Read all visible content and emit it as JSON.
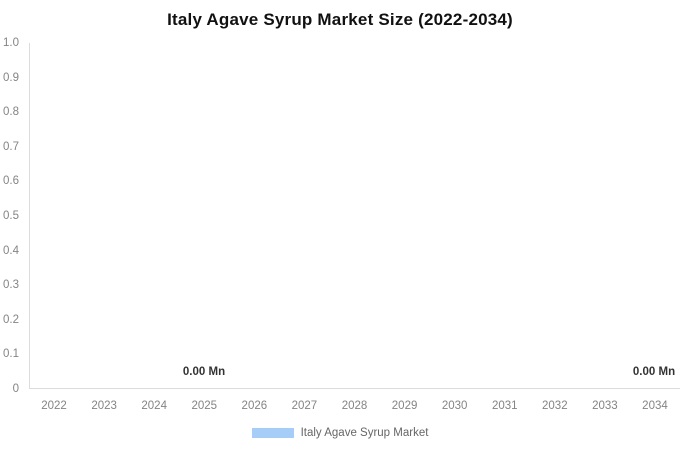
{
  "title": "Italy Agave Syrup Market Size (2022-2034)",
  "colors": {
    "series": "#a6cdf8",
    "title_text": "#111111",
    "axis_text": "#848484",
    "data_label_text": "#333333",
    "legend_text": "#666666",
    "axis_line": "#dcdcdc",
    "background": "#ffffff"
  },
  "chart_data": {
    "type": "bar",
    "title": "Italy Agave Syrup Market Size (2022-2034)",
    "categories": [
      "2022",
      "2023",
      "2024",
      "2025",
      "2026",
      "2027",
      "2028",
      "2029",
      "2030",
      "2031",
      "2032",
      "2033",
      "2034"
    ],
    "series": [
      {
        "name": "Italy Agave Syrup Market",
        "values": [
          0,
          0,
          0,
          0,
          0,
          0,
          0,
          0,
          0,
          0,
          0,
          0,
          0
        ],
        "unit": "Mn",
        "color": "#a6cdf8"
      }
    ],
    "data_labels": [
      {
        "category": "2025",
        "text": "0.00 Mn"
      },
      {
        "category": "2034",
        "text": "0.00 Mn"
      }
    ],
    "xlabel": "",
    "ylabel": "",
    "ylim": [
      0,
      1.0
    ],
    "ytick_labels": [
      "1.0",
      "0.9",
      "0.8",
      "0.7",
      "0.6",
      "0.5",
      "0.4",
      "0.3",
      "0.2",
      "0.1",
      "0"
    ],
    "grid": false,
    "legend_position": "bottom"
  }
}
